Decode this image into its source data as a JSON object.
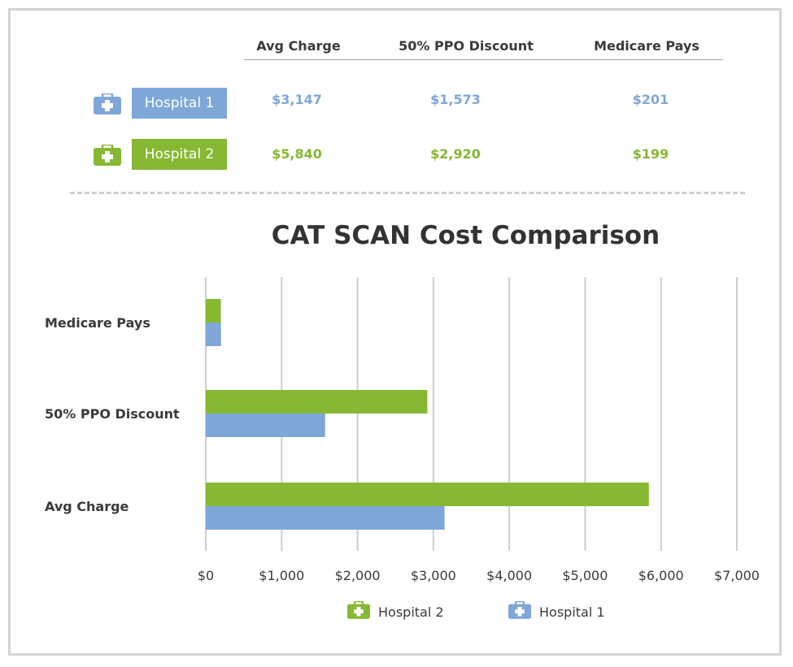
{
  "table": {
    "headers": [
      "Avg Charge",
      "50% PPO Discount",
      "Medicare Pays"
    ],
    "rows": [
      {
        "name": "Hospital 1",
        "color": "#7ea7d8",
        "icon": "medical-kit-icon",
        "values": [
          "$3,147",
          "$1,573",
          "$201"
        ]
      },
      {
        "name": "Hospital 2",
        "color": "#86b833",
        "icon": "medical-kit-icon",
        "values": [
          "$5,840",
          "$2,920",
          "$199"
        ]
      }
    ]
  },
  "chart_data": {
    "type": "bar",
    "orientation": "horizontal",
    "title": "CAT SCAN Cost Comparison",
    "categories": [
      "Medicare Pays",
      "50% PPO Discount",
      "Avg Charge"
    ],
    "series": [
      {
        "name": "Hospital 2",
        "color": "#86b833",
        "values": [
          199,
          2920,
          5840
        ]
      },
      {
        "name": "Hospital 1",
        "color": "#7ea7d8",
        "values": [
          201,
          1573,
          3147
        ]
      }
    ],
    "xlim": [
      0,
      7000
    ],
    "xticks": [
      0,
      1000,
      2000,
      3000,
      4000,
      5000,
      6000,
      7000
    ],
    "xtick_labels": [
      "$0",
      "$1,000",
      "$2,000",
      "$3,000",
      "$4,000",
      "$5,000",
      "$6,000",
      "$7,000"
    ],
    "grid": true,
    "legend": {
      "placement": "bottom",
      "entries": [
        "Hospital 2",
        "Hospital 1"
      ]
    }
  }
}
